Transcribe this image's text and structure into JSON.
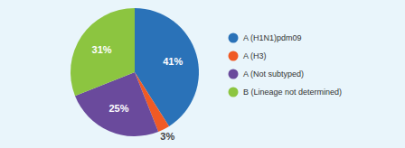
{
  "chart_data": {
    "type": "pie",
    "categories": [
      "A (H1N1)pdm09",
      "A (H3)",
      "A (Not subtyped)",
      "B (Lineage not determined)"
    ],
    "values": [
      41,
      3,
      25,
      31
    ],
    "value_labels": [
      "41%",
      "3%",
      "25%",
      "31%"
    ],
    "colors": [
      "#2a72b8",
      "#f05a24",
      "#6a4a9c",
      "#8cc540"
    ],
    "data_labels": true,
    "legend": "right"
  }
}
